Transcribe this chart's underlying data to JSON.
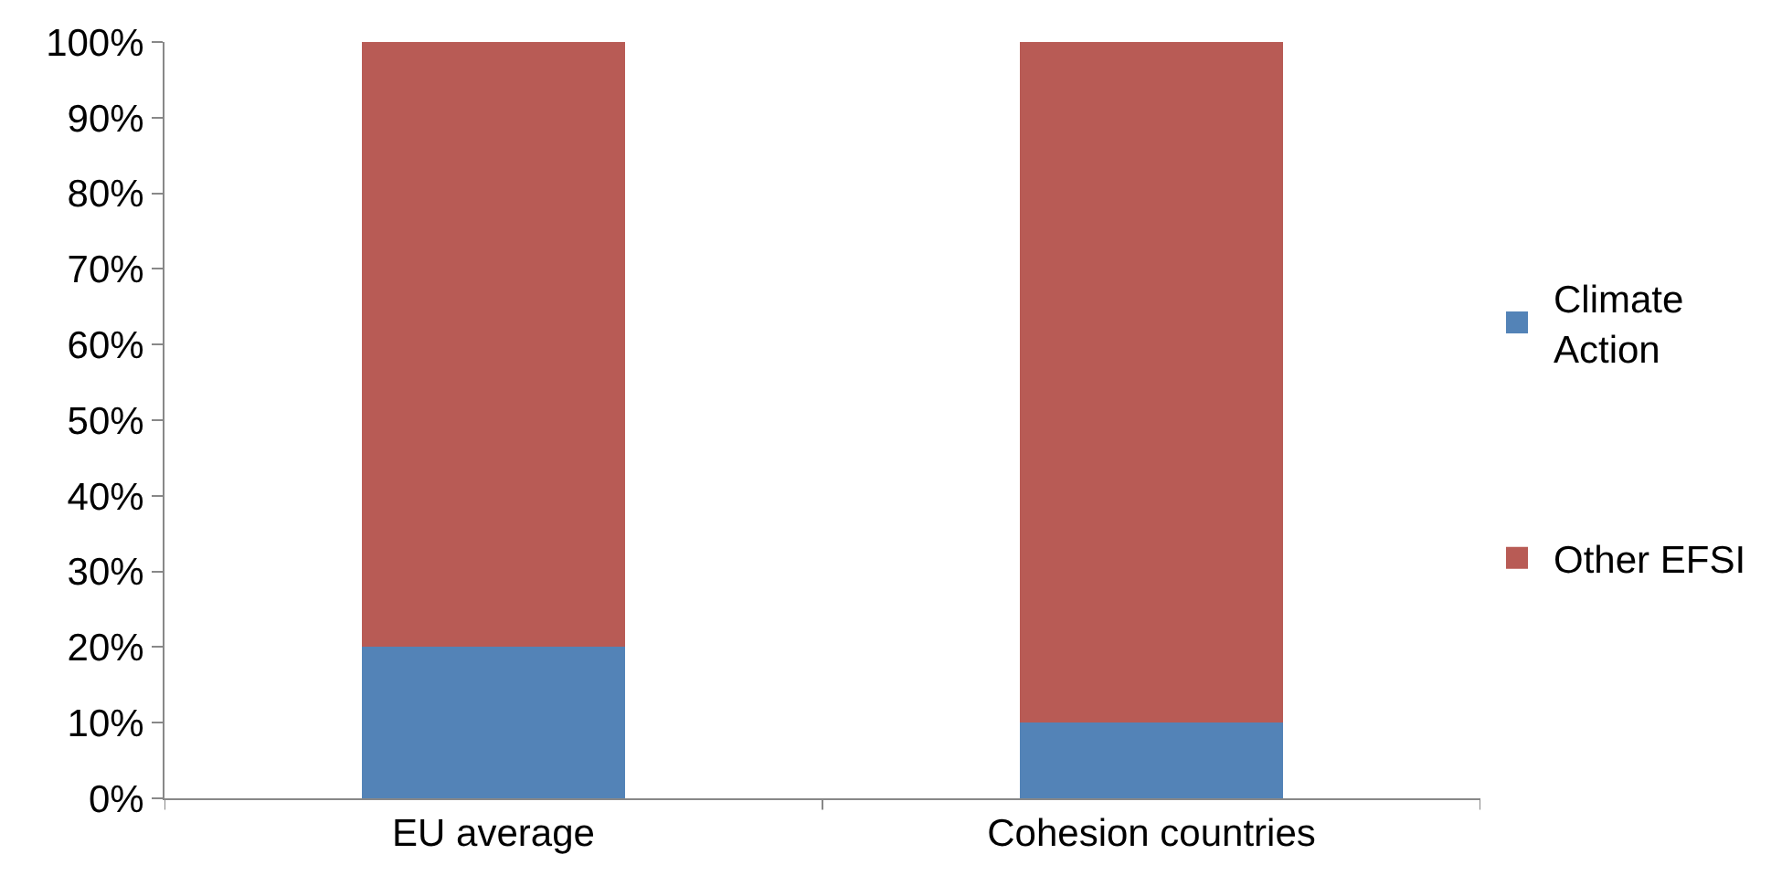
{
  "chart_data": {
    "type": "bar",
    "stacked": true,
    "categories": [
      "EU average",
      "Cohesion countries"
    ],
    "series": [
      {
        "name": "Climate Action",
        "color": "#5383b7",
        "values": [
          20,
          10
        ]
      },
      {
        "name": "Other EFSI",
        "color": "#b85b55",
        "values": [
          80,
          90
        ]
      }
    ],
    "ylim": [
      0,
      100
    ],
    "yticks": [
      {
        "value": 0,
        "label": "0%"
      },
      {
        "value": 10,
        "label": "10%"
      },
      {
        "value": 20,
        "label": "20%"
      },
      {
        "value": 30,
        "label": "30%"
      },
      {
        "value": 40,
        "label": "40%"
      },
      {
        "value": 50,
        "label": "50%"
      },
      {
        "value": 60,
        "label": "60%"
      },
      {
        "value": 70,
        "label": "70%"
      },
      {
        "value": 80,
        "label": "80%"
      },
      {
        "value": 90,
        "label": "90%"
      },
      {
        "value": 100,
        "label": "100%"
      }
    ],
    "legend": "right"
  }
}
